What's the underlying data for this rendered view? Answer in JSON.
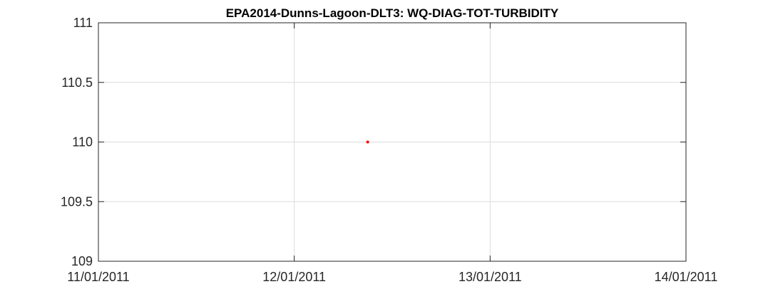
{
  "chart_data": {
    "type": "scatter",
    "title": "EPA2014-Dunns-Lagoon-DLT3: WQ-DIAG-TOT-TURBIDITY",
    "xlabel": "",
    "ylabel": "",
    "x_ticks": [
      "11/01/2011",
      "12/01/2011",
      "13/01/2011",
      "14/01/2011"
    ],
    "y_ticks": [
      "111",
      "110.5",
      "110",
      "109.5",
      "109"
    ],
    "xlim": [
      "2011-01-11",
      "2011-01-14"
    ],
    "ylim": [
      109,
      111
    ],
    "grid": true,
    "series": [
      {
        "color": "#ff0000",
        "points": [
          {
            "x": "2011-01-12 09:00",
            "y": 110
          }
        ]
      }
    ]
  }
}
